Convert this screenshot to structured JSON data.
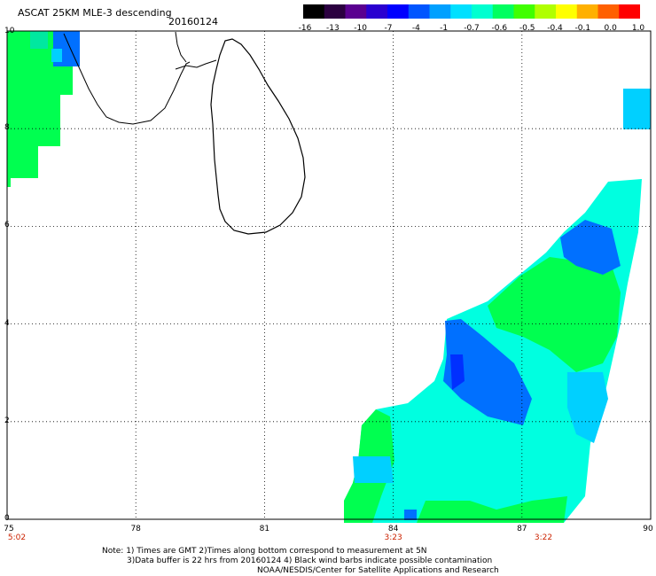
{
  "header": {
    "title": "ASCAT 25KM MLE-3 descending",
    "date": "20160124"
  },
  "colorbar": {
    "labels": [
      "-16",
      "-13",
      "-10",
      "-7",
      "-4",
      "-1",
      "-0.7",
      "-0.6",
      "-0.5",
      "-0.4",
      "-0.1",
      "0.0",
      "1.0"
    ],
    "colors": [
      "#000000",
      "#2b0040",
      "#5a0090",
      "#2a00d0",
      "#0000ff",
      "#0055ff",
      "#00a0ff",
      "#00e0ff",
      "#00ffd0",
      "#00ff60",
      "#40ff00",
      "#b0ff00",
      "#ffff00",
      "#ffb000",
      "#ff6000",
      "#ff0000"
    ]
  },
  "axes": {
    "x_ticks": [
      "75",
      "78",
      "81",
      "84",
      "87",
      "90"
    ],
    "y_ticks": [
      "0",
      "2",
      "4",
      "6",
      "8",
      "10"
    ],
    "lon_range": [
      75,
      90
    ],
    "lat_range": [
      0,
      10
    ]
  },
  "times": [
    {
      "lon": 75,
      "label": "5:02"
    },
    {
      "lon": 84,
      "label": "3:23"
    },
    {
      "lon": 87.5,
      "label": "3:22"
    }
  ],
  "notes": {
    "line1": "Note: 1) Times are GMT 2)Times along bottom correspond to measurement at 5N",
    "line2": "3)Data buffer is 22 hrs from 20160124 4) Black wind barbs indicate possible contamination",
    "line3": "NOAA/NESDIS/Center for Satellite Applications and Research"
  }
}
